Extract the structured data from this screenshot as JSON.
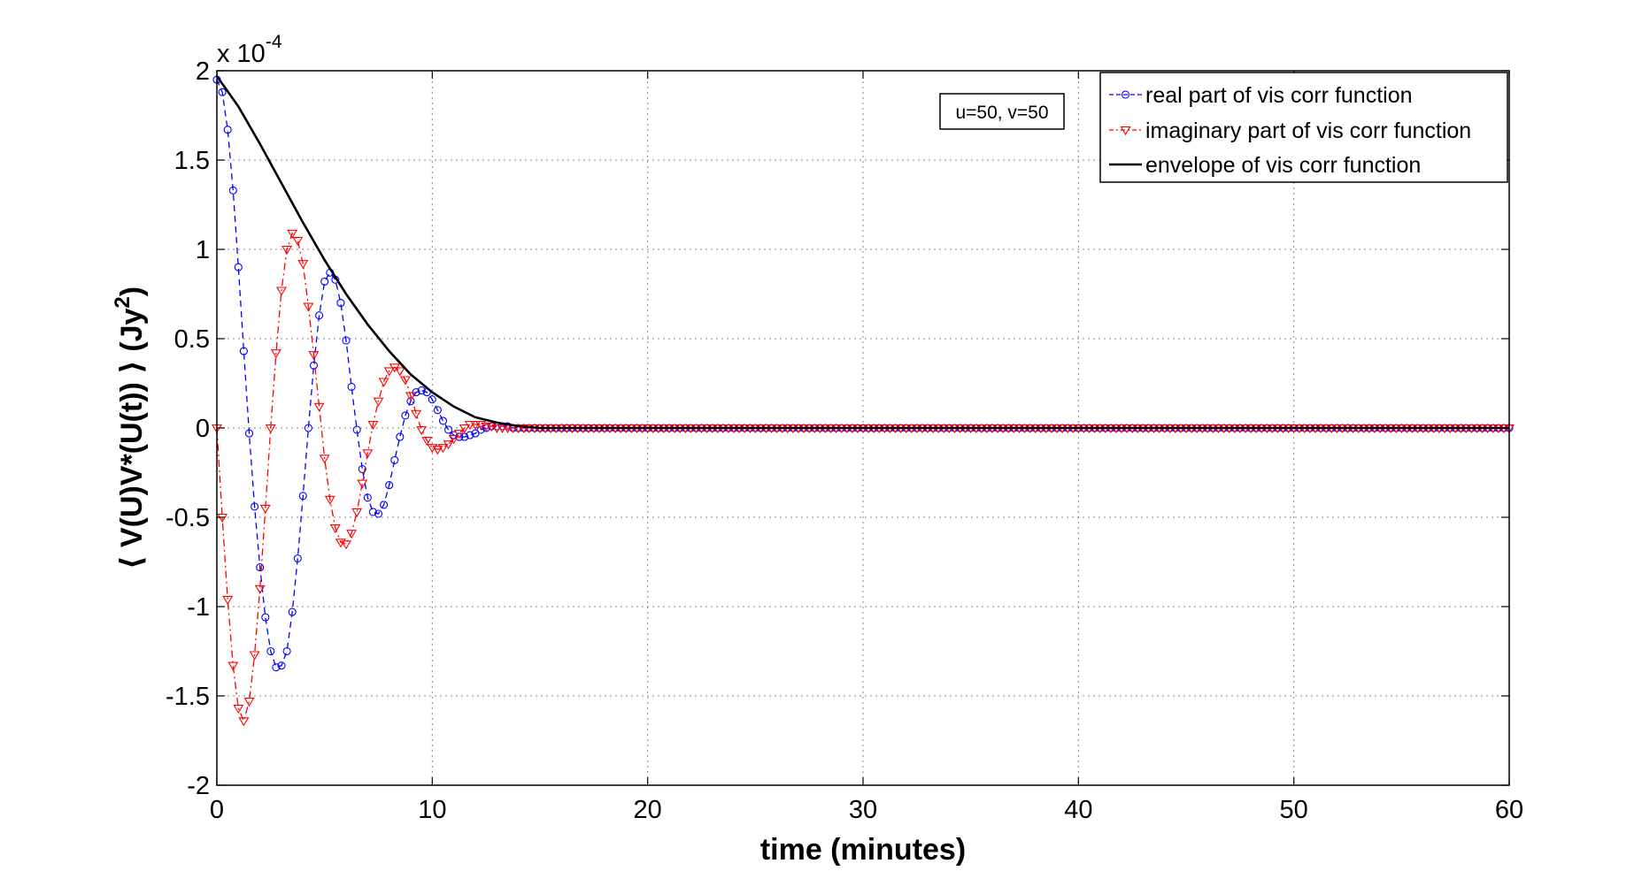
{
  "chart_data": {
    "type": "line",
    "title": "",
    "xlabel": "time (minutes)",
    "ylabel": "⟨ V(U)V*(U(t)) ⟩ (Jy",
    "ylabel_superscript": "2",
    "ylabel_suffix": ")",
    "xlim": [
      0,
      60
    ],
    "ylim": [
      -2,
      2
    ],
    "x_ticks": [
      0,
      10,
      20,
      30,
      40,
      50,
      60
    ],
    "x_tick_labels": [
      "0",
      "10",
      "20",
      "30",
      "40",
      "50",
      "60"
    ],
    "y_ticks": [
      -2,
      -1.5,
      -1,
      -0.5,
      0,
      0.5,
      1,
      1.5,
      2
    ],
    "y_tick_labels": [
      "-2",
      "-1.5",
      "-1",
      "-0.5",
      "0",
      "0.5",
      "1",
      "1.5",
      "2"
    ],
    "y_exponent_label": "x 10",
    "y_exponent_power": "-4",
    "grid": true,
    "legend_position": "top-right",
    "annotation": "u=50, v=50",
    "series": [
      {
        "name": "real part of vis corr function",
        "color": "#0000ff",
        "line_style": "dashed",
        "marker": "circle",
        "x": [
          0,
          0.25,
          0.5,
          0.75,
          1,
          1.25,
          1.5,
          1.75,
          2,
          2.25,
          2.5,
          2.75,
          3,
          3.25,
          3.5,
          3.75,
          4,
          4.25,
          4.5,
          4.75,
          5,
          5.25,
          5.5,
          5.75,
          6,
          6.25,
          6.5,
          6.75,
          7,
          7.25,
          7.5,
          7.75,
          8,
          8.25,
          8.5,
          8.75,
          9,
          9.25,
          9.5,
          9.75,
          10,
          10.25,
          10.5,
          10.75,
          11,
          11.25,
          11.5,
          11.75,
          12,
          12.25,
          12.5,
          12.75,
          13,
          13.25,
          13.5,
          13.75,
          14,
          14.25,
          14.5,
          14.75,
          15,
          16,
          20,
          25,
          30,
          35,
          40,
          45,
          50,
          55,
          60
        ],
        "values": [
          1.95,
          1.88,
          1.67,
          1.33,
          0.9,
          0.43,
          -0.03,
          -0.44,
          -0.78,
          -1.06,
          -1.25,
          -1.34,
          -1.33,
          -1.25,
          -1.03,
          -0.73,
          -0.38,
          0.0,
          0.35,
          0.63,
          0.82,
          0.87,
          0.83,
          0.7,
          0.49,
          0.23,
          -0.01,
          -0.23,
          -0.39,
          -0.47,
          -0.48,
          -0.43,
          -0.32,
          -0.18,
          -0.05,
          0.07,
          0.15,
          0.2,
          0.21,
          0.2,
          0.16,
          0.1,
          0.04,
          -0.01,
          -0.04,
          -0.05,
          -0.05,
          -0.04,
          -0.03,
          -0.01,
          0.0,
          0.01,
          0.01,
          0.01,
          0.01,
          0.0,
          0.0,
          0.0,
          0.0,
          0.0,
          0.0,
          0.0,
          0.0,
          0.0,
          0.0,
          0.0,
          0.0,
          0.0,
          0.0,
          0.0,
          0.0
        ]
      },
      {
        "name": "imaginary part of vis corr function",
        "color": "#ff0000",
        "line_style": "dashdot",
        "marker": "triangle-down",
        "x": [
          0,
          0.25,
          0.5,
          0.75,
          1,
          1.25,
          1.5,
          1.75,
          2,
          2.25,
          2.5,
          2.75,
          3,
          3.25,
          3.5,
          3.75,
          4,
          4.25,
          4.5,
          4.75,
          5,
          5.25,
          5.5,
          5.75,
          6,
          6.25,
          6.5,
          6.75,
          7,
          7.25,
          7.5,
          7.75,
          8,
          8.25,
          8.5,
          8.75,
          9,
          9.25,
          9.5,
          9.75,
          10,
          10.25,
          10.5,
          10.75,
          11,
          11.25,
          11.5,
          11.75,
          12,
          12.25,
          12.5,
          12.75,
          13,
          13.25,
          13.5,
          13.75,
          14,
          14.25,
          14.5,
          14.75,
          15,
          16,
          20,
          25,
          30,
          35,
          40,
          45,
          50,
          55,
          60
        ],
        "values": [
          0.0,
          -0.5,
          -0.96,
          -1.33,
          -1.57,
          -1.64,
          -1.53,
          -1.27,
          -0.9,
          -0.45,
          0.0,
          0.42,
          0.77,
          1.0,
          1.09,
          1.05,
          0.92,
          0.68,
          0.41,
          0.12,
          -0.17,
          -0.4,
          -0.56,
          -0.64,
          -0.65,
          -0.59,
          -0.47,
          -0.31,
          -0.14,
          0.02,
          0.15,
          0.26,
          0.32,
          0.34,
          0.32,
          0.27,
          0.18,
          0.08,
          -0.01,
          -0.07,
          -0.11,
          -0.12,
          -0.11,
          -0.09,
          -0.06,
          -0.03,
          0.0,
          0.02,
          0.02,
          0.02,
          0.01,
          0.01,
          0.0,
          0.0,
          0.0,
          0.0,
          0.0,
          0.0,
          0.0,
          0.0,
          0.0,
          0.0,
          0.0,
          0.0,
          0.0,
          0.0,
          0.0,
          0.0,
          0.0,
          0.0,
          0.0
        ]
      },
      {
        "name": "envelope of vis corr function",
        "color": "#000000",
        "line_style": "solid",
        "marker": "none",
        "x": [
          0,
          1,
          2,
          3,
          4,
          5,
          6,
          7,
          8,
          9,
          10,
          11,
          12,
          13,
          14,
          15,
          16,
          20,
          30,
          40,
          50,
          60
        ],
        "values": [
          1.97,
          1.8,
          1.59,
          1.37,
          1.15,
          0.94,
          0.75,
          0.58,
          0.43,
          0.3,
          0.2,
          0.12,
          0.06,
          0.03,
          0.01,
          0.0,
          0.0,
          0.0,
          0.0,
          0.0,
          0.0,
          0.0
        ]
      }
    ]
  }
}
